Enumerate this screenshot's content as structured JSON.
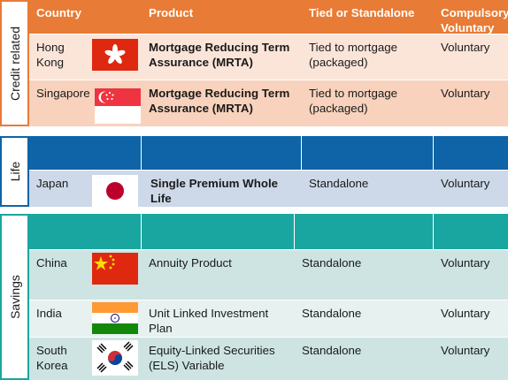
{
  "headers": {
    "country": "Country",
    "product": "Product",
    "tied": "Tied or Standalone",
    "compulsory_line1": "Compulsory",
    "compulsory_line2": "Voluntary"
  },
  "sections": {
    "credit": "Credit related",
    "life": "Life",
    "savings": "Savings"
  },
  "rows": [
    {
      "country": "Hong Kong",
      "product": "Mortgage Reducing Term Assurance (MRTA)",
      "tied": "Tied to mortgage (packaged)",
      "compulsory": "Voluntary",
      "flag": "hong-kong"
    },
    {
      "country": "Singapore",
      "product": "Mortgage Reducing Term Assurance (MRTA)",
      "tied": "Tied to mortgage (packaged)",
      "compulsory": "Voluntary",
      "flag": "singapore"
    },
    {
      "country": "Japan",
      "product": "Single Premium Whole Life",
      "tied": "Standalone",
      "compulsory": "Voluntary",
      "flag": "japan"
    },
    {
      "country": "China",
      "product": "Annuity Product",
      "tied": "Standalone",
      "compulsory": "Voluntary",
      "flag": "china"
    },
    {
      "country": "India",
      "product": "Unit Linked Investment Plan",
      "tied": "Standalone",
      "compulsory": "Voluntary",
      "flag": "india"
    },
    {
      "country": "South Korea",
      "product": "Equity-Linked Securities (ELS) Variable",
      "tied": "Standalone",
      "compulsory": "Voluntary",
      "flag": "south-korea"
    }
  ],
  "colors": {
    "credit_header": "#E87B35",
    "credit_row_a": "#FBE5D9",
    "credit_row_b": "#F8D2BC",
    "life_header": "#0E64A6",
    "life_row": "#CDD9E8",
    "savings_header": "#1AA6A0",
    "savings_row_a": "#CDE4E2",
    "savings_row_b": "#E6F1F0"
  }
}
